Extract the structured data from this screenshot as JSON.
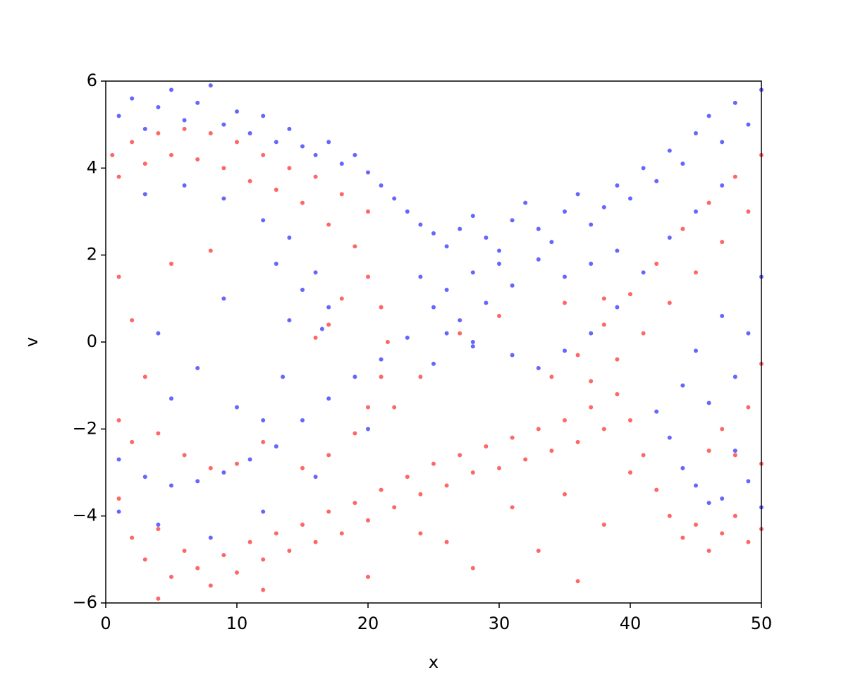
{
  "chart_data": {
    "type": "scatter",
    "xlabel": "x",
    "ylabel": "v",
    "xlim": [
      0,
      50
    ],
    "ylim": [
      -6,
      6
    ],
    "xticks": [
      0,
      10,
      20,
      30,
      40,
      50
    ],
    "yticks": [
      {
        "value": -6,
        "label": "−6"
      },
      {
        "value": -4,
        "label": "−4"
      },
      {
        "value": -2,
        "label": "−2"
      },
      0,
      2,
      4,
      6
    ],
    "grid": false,
    "series": [
      {
        "color": "#0000ff",
        "x": [
          1,
          2,
          3,
          4,
          5,
          6,
          7,
          8,
          9,
          10,
          11,
          12,
          13,
          14,
          15,
          16,
          17,
          18,
          19,
          20,
          21,
          22,
          23,
          24,
          25,
          26,
          27,
          28,
          29,
          30,
          31,
          32,
          33,
          34,
          35,
          36,
          37,
          38,
          39,
          40,
          41,
          42,
          43,
          44,
          45,
          46,
          47,
          48,
          49,
          50,
          24,
          25,
          26,
          27,
          28,
          29,
          30,
          31,
          33,
          35,
          37,
          39,
          26,
          28,
          3,
          6,
          9,
          12,
          14,
          16,
          17,
          16.5,
          15,
          13,
          14,
          13.5,
          12,
          4,
          7,
          9,
          5,
          10,
          1,
          3,
          5,
          7,
          9,
          11,
          13,
          15,
          17,
          19,
          21,
          23,
          1,
          4,
          8,
          12,
          16,
          20,
          25,
          28,
          31,
          33,
          35,
          37,
          39,
          41,
          43,
          45,
          47,
          42,
          43,
          44,
          45,
          46,
          47,
          44,
          46,
          48,
          49,
          50,
          48,
          49,
          50,
          47,
          45
        ],
        "values": [
          5.2,
          5.6,
          4.9,
          5.4,
          5.8,
          5.1,
          5.5,
          5.9,
          5.0,
          5.3,
          4.8,
          5.2,
          4.6,
          4.9,
          4.5,
          4.3,
          4.6,
          4.1,
          4.3,
          3.9,
          3.6,
          3.3,
          3.0,
          2.7,
          2.5,
          2.2,
          2.6,
          2.9,
          2.4,
          2.1,
          2.8,
          3.2,
          2.6,
          2.3,
          3.0,
          3.4,
          2.7,
          3.1,
          3.6,
          3.3,
          4.0,
          3.7,
          4.4,
          4.1,
          4.8,
          5.2,
          4.6,
          5.5,
          5.0,
          5.8,
          1.5,
          0.8,
          1.2,
          0.5,
          1.6,
          0.9,
          1.8,
          1.3,
          1.9,
          1.5,
          1.8,
          2.1,
          0.2,
          -0.1,
          3.4,
          3.6,
          3.3,
          2.8,
          2.4,
          1.6,
          0.8,
          0.3,
          1.2,
          1.8,
          0.5,
          -0.8,
          -1.8,
          0.2,
          -0.6,
          1.0,
          -1.3,
          -1.5,
          -2.7,
          -3.1,
          -3.3,
          -3.2,
          -3.0,
          -2.7,
          -2.4,
          -1.8,
          -1.3,
          -0.8,
          -0.4,
          0.1,
          -3.9,
          -4.2,
          -4.5,
          -3.9,
          -3.1,
          -2.0,
          -0.5,
          0.0,
          -0.3,
          -0.6,
          -0.2,
          0.2,
          0.8,
          1.6,
          2.4,
          3.0,
          3.6,
          -1.6,
          -2.2,
          -2.9,
          -3.3,
          -3.7,
          -3.6,
          -1.0,
          -1.4,
          -0.8,
          0.2,
          1.5,
          -2.5,
          -3.2,
          -3.8,
          0.6,
          -0.2
        ]
      },
      {
        "color": "#ff0000",
        "x": [
          0.5,
          2,
          4,
          6,
          8,
          10,
          12,
          14,
          16,
          18,
          20,
          1,
          3,
          5,
          7,
          9,
          11,
          13,
          15,
          17,
          19,
          20,
          21,
          21.5,
          21,
          20,
          19,
          17,
          15,
          18,
          17,
          16,
          1,
          2,
          3,
          1,
          4,
          6,
          8,
          10,
          5,
          8,
          12,
          2,
          1,
          2,
          3,
          4,
          5,
          6,
          7,
          8,
          9,
          10,
          11,
          12,
          13,
          14,
          15,
          16,
          17,
          18,
          19,
          20,
          21,
          22,
          23,
          24,
          25,
          26,
          27,
          28,
          29,
          30,
          31,
          32,
          33,
          34,
          35,
          36,
          37,
          38,
          39,
          40,
          41,
          42,
          43,
          44,
          45,
          46,
          47,
          48,
          49,
          50,
          4,
          12,
          20,
          26,
          28,
          33,
          36,
          38,
          31,
          35,
          40,
          24,
          34,
          36,
          38,
          40,
          42,
          44,
          46,
          48,
          50,
          37,
          39,
          41,
          43,
          45,
          47,
          49,
          35,
          38,
          30,
          27,
          24,
          22,
          47,
          48,
          49,
          50,
          46,
          50
        ],
        "values": [
          4.3,
          4.6,
          4.8,
          4.9,
          4.8,
          4.6,
          4.3,
          4.0,
          3.8,
          3.4,
          3.0,
          3.8,
          4.1,
          4.3,
          4.2,
          4.0,
          3.7,
          3.5,
          3.2,
          2.7,
          2.2,
          1.5,
          0.8,
          0,
          -0.8,
          -1.5,
          -2.1,
          -2.6,
          -2.9,
          1.0,
          0.4,
          0.1,
          1.5,
          0.5,
          -0.8,
          -1.8,
          -2.1,
          -2.6,
          -2.9,
          -2.8,
          1.8,
          2.1,
          -2.3,
          -2.3,
          -3.6,
          -4.5,
          -5.0,
          -4.3,
          -5.4,
          -4.8,
          -5.2,
          -5.6,
          -4.9,
          -5.3,
          -4.6,
          -5.0,
          -4.4,
          -4.8,
          -4.2,
          -4.6,
          -3.9,
          -4.4,
          -3.7,
          -4.1,
          -3.4,
          -3.8,
          -3.1,
          -3.5,
          -2.8,
          -3.3,
          -2.6,
          -3.0,
          -2.4,
          -2.9,
          -2.2,
          -2.7,
          -2.0,
          -2.5,
          -1.8,
          -2.3,
          -1.5,
          -2.0,
          -1.2,
          -1.8,
          -2.6,
          -3.4,
          -4.0,
          -4.5,
          -4.2,
          -4.8,
          -4.4,
          -4.0,
          -4.6,
          -4.3,
          -5.9,
          -5.7,
          -5.4,
          -4.6,
          -5.2,
          -4.8,
          -5.5,
          -4.2,
          -3.8,
          -3.5,
          -3.0,
          -4.4,
          -0.8,
          -0.3,
          0.4,
          1.1,
          1.8,
          2.6,
          3.2,
          3.8,
          4.3,
          -0.9,
          -0.4,
          0.2,
          0.9,
          1.6,
          2.3,
          3.0,
          0.9,
          1.0,
          0.6,
          0.2,
          -0.8,
          -1.5,
          -2.0,
          -2.6,
          -1.5,
          -0.5,
          -2.5,
          -2.8
        ]
      }
    ]
  }
}
